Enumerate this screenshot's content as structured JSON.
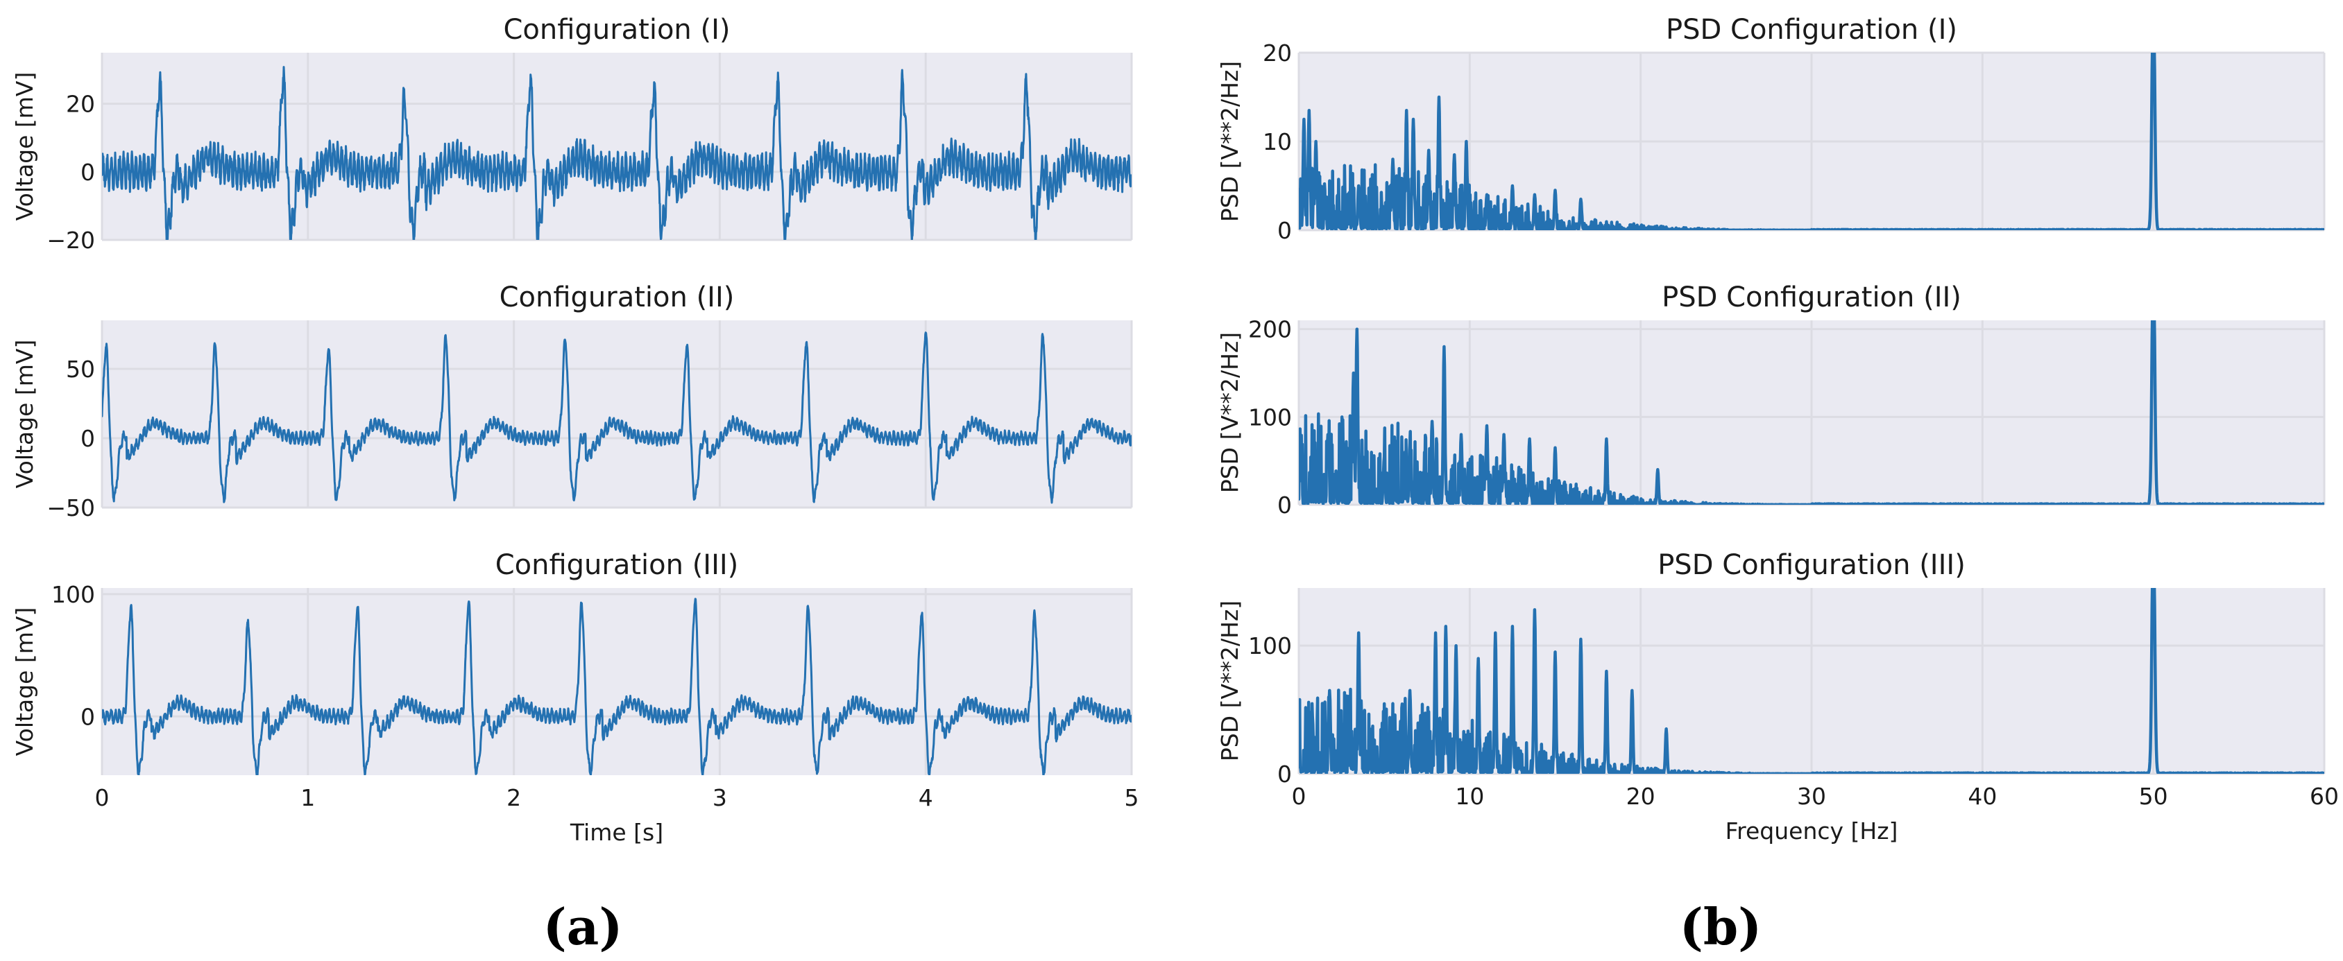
{
  "chart_data": [
    {
      "type": "line",
      "title": "Configuration (I)",
      "xlabel": "",
      "ylabel": "Voltage [mV]",
      "xlim": [
        0,
        5
      ],
      "ylim": [
        -20,
        35
      ],
      "xticks": [
        0,
        1,
        2,
        3,
        4,
        5
      ],
      "xtick_labels": [
        "",
        "",
        "",
        "",
        "",
        ""
      ],
      "yticks": [
        -20,
        0,
        20
      ],
      "ytick_labels": [
        "−20",
        "0",
        "20"
      ],
      "color": "#2471b1",
      "series": [
        {
          "name": "ECG",
          "description": "ECG trace with R peaks, baseline oscillation and negative S dips",
          "peaks_x": [
            0.28,
            0.88,
            1.47,
            2.08,
            2.68,
            3.28,
            3.89,
            4.49
          ],
          "peaks_y": [
            26,
            28,
            22,
            27,
            25,
            26,
            26,
            26
          ],
          "s_dip_mv": -17,
          "baseline_mv": 0,
          "noise_amplitude_mv": 4.5
        }
      ]
    },
    {
      "type": "line",
      "title": "Configuration (II)",
      "xlabel": "",
      "ylabel": "Voltage [mV]",
      "xlim": [
        0,
        5
      ],
      "ylim": [
        -50,
        85
      ],
      "xticks": [
        0,
        1,
        2,
        3,
        4,
        5
      ],
      "xtick_labels": [
        "",
        "",
        "",
        "",
        "",
        ""
      ],
      "yticks": [
        -50,
        0,
        50
      ],
      "ytick_labels": [
        "−50",
        "0",
        "50"
      ],
      "color": "#2471b1",
      "series": [
        {
          "name": "ECG",
          "description": "ECG trace with R peaks and deep S dips, T-wave bumps",
          "peaks_x": [
            0.02,
            0.55,
            1.1,
            1.67,
            2.25,
            2.84,
            3.42,
            4.0,
            4.57
          ],
          "peaks_y": [
            67,
            68,
            65,
            73,
            72,
            67,
            70,
            77,
            74
          ],
          "s_dip_mv": -43,
          "baseline_mv": 0,
          "noise_amplitude_mv": 4
        }
      ]
    },
    {
      "type": "line",
      "title": "Configuration (III)",
      "xlabel": "Time [s]",
      "ylabel": "Voltage [mV]",
      "xlim": [
        0,
        5
      ],
      "ylim": [
        -48,
        105
      ],
      "xticks": [
        0,
        1,
        2,
        3,
        4,
        5
      ],
      "xtick_labels": [
        "0",
        "1",
        "2",
        "3",
        "4",
        "5"
      ],
      "yticks": [
        0,
        100
      ],
      "ytick_labels": [
        "0",
        "100"
      ],
      "color": "#2471b1",
      "series": [
        {
          "name": "ECG",
          "description": "ECG trace with R peaks and S dips, T-wave bumps",
          "peaks_x": [
            0.14,
            0.71,
            1.24,
            1.78,
            2.33,
            2.88,
            3.43,
            3.98,
            4.53
          ],
          "peaks_y": [
            90,
            78,
            90,
            93,
            92,
            96,
            90,
            84,
            84
          ],
          "s_dip_mv": -45,
          "baseline_mv": 0,
          "noise_amplitude_mv": 5
        }
      ]
    },
    {
      "type": "line",
      "title": "PSD Configuration (I)",
      "xlabel": "",
      "ylabel": "PSD [V**2/Hz]",
      "xlim": [
        0,
        60
      ],
      "ylim": [
        0,
        20
      ],
      "xticks": [
        0,
        10,
        20,
        30,
        40,
        50,
        60
      ],
      "xtick_labels": [
        "",
        "",
        "",
        "",
        "",
        "",
        ""
      ],
      "yticks": [
        0,
        10,
        20
      ],
      "ytick_labels": [
        "0",
        "10",
        "20"
      ],
      "color": "#2471b1",
      "series": [
        {
          "name": "PSD",
          "description": "Power spectral density, low-frequency energy up to ~25 Hz and a strong 50 Hz line",
          "peak_freqs_hz": [
            0.3,
            0.6,
            1.0,
            3.5,
            5.5,
            6.3,
            6.7,
            7.6,
            8.2,
            9.1,
            9.8,
            11.0,
            12.5,
            13.8,
            15.0,
            16.5
          ],
          "peak_values": [
            12.5,
            13.5,
            10,
            5,
            8,
            13.5,
            12.5,
            9,
            15,
            8.5,
            10,
            4,
            5,
            4,
            4.5,
            3.5
          ],
          "line_freq_hz": 50,
          "line_value": 20
        }
      ]
    },
    {
      "type": "line",
      "title": "PSD Configuration (II)",
      "xlabel": "",
      "ylabel": "PSD [V**2/Hz]",
      "xlim": [
        0,
        60
      ],
      "ylim": [
        0,
        210
      ],
      "xticks": [
        0,
        10,
        20,
        30,
        40,
        50,
        60
      ],
      "xtick_labels": [
        "",
        "",
        "",
        "",
        "",
        "",
        ""
      ],
      "yticks": [
        0,
        100,
        200
      ],
      "ytick_labels": [
        "0",
        "100",
        "200"
      ],
      "color": "#2471b1",
      "series": [
        {
          "name": "PSD",
          "description": "Power spectral density with peaks below ~25 Hz and a strong 50 Hz line",
          "peak_freqs_hz": [
            0.1,
            1.7,
            3.2,
            3.4,
            5.0,
            6.5,
            7.8,
            8.5,
            9.5,
            11.0,
            12.0,
            13.5,
            15.0,
            18.0,
            21.0
          ],
          "peak_values": [
            35,
            80,
            150,
            200,
            55,
            70,
            95,
            180,
            80,
            90,
            80,
            75,
            65,
            75,
            40
          ],
          "line_freq_hz": 50,
          "line_value": 210
        }
      ]
    },
    {
      "type": "line",
      "title": "PSD Configuration (III)",
      "xlabel": "Frequency [Hz]",
      "ylabel": "PSD [V**2/Hz]",
      "xlim": [
        0,
        60
      ],
      "ylim": [
        0,
        145
      ],
      "xticks": [
        0,
        10,
        20,
        30,
        40,
        50,
        60
      ],
      "xtick_labels": [
        "0",
        "10",
        "20",
        "30",
        "40",
        "50",
        "60"
      ],
      "yticks": [
        0,
        100
      ],
      "ytick_labels": [
        "0",
        "100"
      ],
      "color": "#2471b1",
      "series": [
        {
          "name": "PSD",
          "description": "Power spectral density with dense peaks between 6 and 20 Hz and a strong 50 Hz line",
          "peak_freqs_hz": [
            1.8,
            3.5,
            6.5,
            8.0,
            8.6,
            9.2,
            10.5,
            11.5,
            12.5,
            13.8,
            15.0,
            16.5,
            18.0,
            19.5,
            21.5
          ],
          "peak_values": [
            65,
            110,
            65,
            110,
            115,
            100,
            90,
            110,
            115,
            128,
            95,
            105,
            80,
            65,
            35
          ],
          "line_freq_hz": 50,
          "line_value": 145
        }
      ]
    }
  ],
  "captions": {
    "left": "(a)",
    "right": "(b)"
  }
}
